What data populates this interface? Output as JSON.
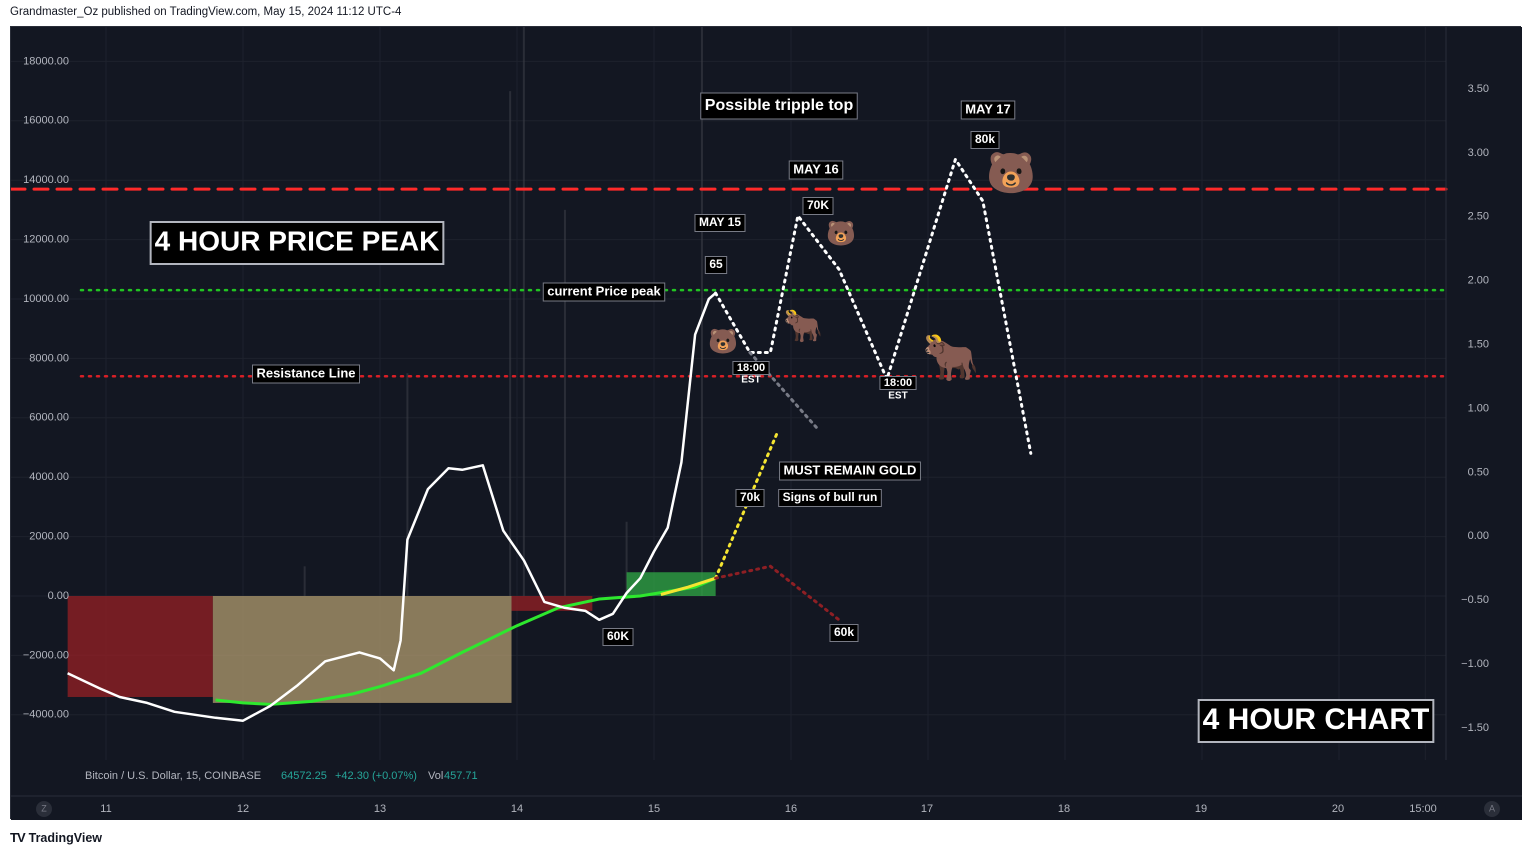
{
  "header": {
    "published_by": "Grandmaster_Oz published on TradingView.com, May 15, 2024 11:12 UTC-4"
  },
  "footer": {
    "brand": "TradingView",
    "logo_icon": "tradingview-logo-icon"
  },
  "legend": {
    "symbol": "Bitcoin / U.S. Dollar, 15, COINBASE",
    "price": "64572.25",
    "change": "+42.30 (+0.07%)",
    "vol_label": "Vol",
    "vol_value": "457.71"
  },
  "time_axis": {
    "left_button": "Z",
    "right_button": "A"
  },
  "colors": {
    "background": "#131722",
    "grid": "#1e222d",
    "axis_text": "#b2b5be",
    "oscillator_line": "#ffffff",
    "ma_line": "#2ee82e",
    "ma_line_recent": "#f5e531",
    "hist_red": "#8e1f24",
    "hist_tan": "#a8946a",
    "hist_green": "#2ea043",
    "resistance_red_dashed": "#ff2a2a",
    "current_peak_green": "#22c522",
    "resistance_red_dotted": "#d81f26",
    "projection_white": "#ffffff",
    "projection_gold": "#f5e531",
    "projection_red": "#8e1f24",
    "projection_grey": "#787b86"
  },
  "chart_data": {
    "type": "line",
    "left_axis": {
      "ticks": [
        "18000.00",
        "16000.00",
        "14000.00",
        "12000.00",
        "10000.00",
        "8000.00",
        "6000.00",
        "4000.00",
        "2000.00",
        "0.00",
        "−2000.00",
        "−4000.00"
      ]
    },
    "right_axis": {
      "ticks": [
        "3.50",
        "3.00",
        "2.50",
        "2.00",
        "1.50",
        "1.00",
        "0.50",
        "0.00",
        "−0.50",
        "−1.00",
        "−1.50"
      ]
    },
    "x_axis": {
      "ticks": [
        "11",
        "12",
        "13",
        "14",
        "15",
        "16",
        "17",
        "18",
        "19",
        "20",
        "15:00"
      ]
    },
    "ylim_left": [
      -5000,
      19000
    ],
    "series": [
      {
        "kind": "oscillator",
        "x": [
          10.72,
          10.95,
          11.1,
          11.3,
          11.5,
          11.8,
          12.0,
          12.2,
          12.4,
          12.6,
          12.85,
          13.0,
          13.1,
          13.15,
          13.2,
          13.35,
          13.5,
          13.6,
          13.75,
          13.9,
          14.05,
          14.2,
          14.35,
          14.5,
          14.6,
          14.7,
          14.8,
          14.9,
          15.0,
          15.1,
          15.2,
          15.3,
          15.4,
          15.45
        ],
        "values": [
          -2600,
          -3100,
          -3400,
          -3600,
          -3900,
          -4100,
          -4200,
          -3700,
          -3000,
          -2200,
          -1900,
          -2100,
          -2500,
          -1500,
          1900,
          3600,
          4300,
          4250,
          4400,
          2200,
          1200,
          -200,
          -400,
          -500,
          -800,
          -600,
          100,
          600,
          1500,
          2300,
          4500,
          8800,
          10000,
          10200
        ]
      },
      {
        "kind": "moving_average",
        "x": [
          11.8,
          12.0,
          12.2,
          12.5,
          12.8,
          13.0,
          13.3,
          13.6,
          14.0,
          14.3,
          14.6,
          14.9,
          15.1,
          15.3,
          15.45
        ],
        "values": [
          -3500,
          -3600,
          -3650,
          -3550,
          -3300,
          -3050,
          -2600,
          -1900,
          -1000,
          -400,
          -100,
          0,
          150,
          300,
          600
        ]
      }
    ],
    "histogram": {
      "segments": [
        {
          "from": 10.72,
          "to": 11.78,
          "color": "red",
          "depth": -3400
        },
        {
          "from": 11.78,
          "to": 13.96,
          "color": "tan",
          "depth": -3600
        },
        {
          "from": 13.96,
          "to": 14.55,
          "color": "red",
          "depth": -500
        },
        {
          "from": 14.8,
          "to": 15.45,
          "color": "green",
          "depth": 800
        }
      ]
    },
    "horizontal_lines": [
      {
        "style": "dashed",
        "color": "red",
        "value": 13700
      },
      {
        "style": "dotted",
        "color": "green",
        "value": 10300
      },
      {
        "style": "dotted",
        "color": "red",
        "value": 7400
      }
    ],
    "projections": [
      {
        "style": "white",
        "x": [
          15.45,
          15.7,
          15.85,
          16.05,
          16.35,
          16.7,
          17.2,
          17.4,
          17.75
        ],
        "values": [
          10200,
          8200,
          8200,
          12800,
          11000,
          7300,
          14700,
          13300,
          4800
        ]
      },
      {
        "style": "grey",
        "x": [
          15.7,
          16.2
        ],
        "values": [
          8200,
          5600
        ]
      },
      {
        "style": "gold",
        "x": [
          15.45,
          15.9
        ],
        "values": [
          600,
          5500
        ]
      },
      {
        "style": "red",
        "x": [
          15.45,
          15.85,
          16.35
        ],
        "values": [
          600,
          1000,
          -800
        ]
      }
    ],
    "annotations": {
      "possible_triple_top": "Possible tripple top",
      "may17": "MAY 17",
      "k80": "80k",
      "may16": "MAY 16",
      "k70_upper": "70K",
      "may15": "MAY 15",
      "n65": "65",
      "price_peak_title": "4 HOUR PRICE PEAK",
      "current_price_peak": "current Price peak",
      "resistance_line": "Resistance Line",
      "time1": "18:00",
      "est1": "EST",
      "time2": "18:00",
      "est2": "EST",
      "must_remain_gold": "MUST REMAIN GOLD",
      "k70_lower": "70k",
      "signs_bull_run": "Signs of bull run",
      "k60_low": "60K",
      "k60_proj": "60k",
      "chart_title": "4 HOUR CHART"
    },
    "markers": [
      {
        "icon": "bear-face-icon",
        "glyph": "🐻"
      },
      {
        "icon": "bear-face-icon",
        "glyph": "🐻"
      },
      {
        "icon": "bear-face-icon",
        "glyph": "🐻"
      },
      {
        "icon": "bull-icon",
        "glyph": "🐂"
      },
      {
        "icon": "bull-icon",
        "glyph": "🐂"
      }
    ]
  }
}
